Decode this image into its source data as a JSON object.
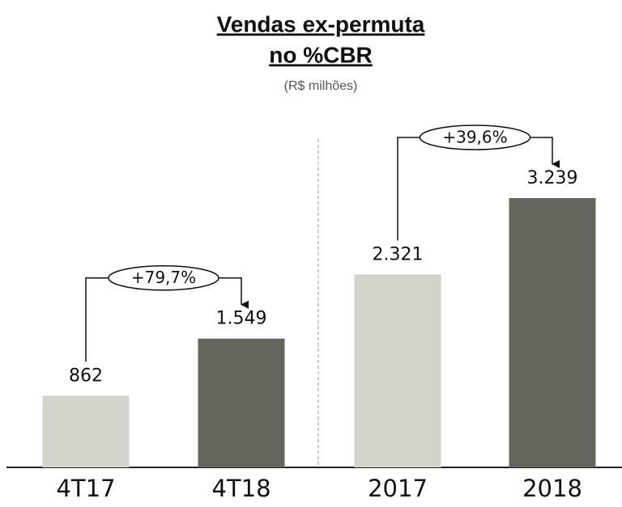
{
  "chart_data": {
    "type": "bar",
    "title": [
      "Vendas ex-permuta",
      "no %CBR"
    ],
    "subtitle": "(R$ milhões)",
    "categories": [
      "4T17",
      "4T18",
      "2017",
      "2018"
    ],
    "values": [
      862,
      1549,
      2321,
      3239
    ],
    "value_labels": [
      "862",
      "1.549",
      "2.321",
      "3.239"
    ],
    "colors": [
      "#d3d3cb",
      "#65655d",
      "#d3d3cb",
      "#65655d"
    ],
    "annotations": [
      "+79,7%",
      "+39,6%"
    ]
  }
}
